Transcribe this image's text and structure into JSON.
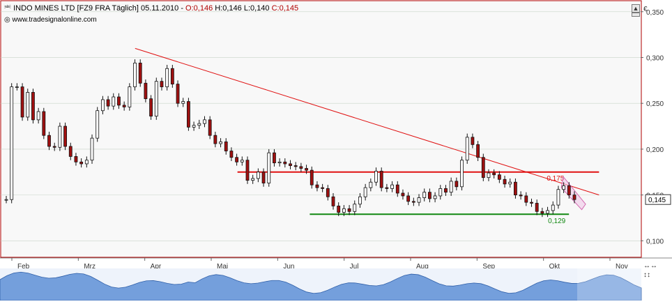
{
  "header": {
    "symbol_icon": "candlestick-icon",
    "title": "INDO MINES LTD [FZ9 FRA  Täglich] 05.11.2010 - ",
    "open": "O:0,146",
    "high": "H:0,146",
    "low": "L:0,140",
    "close": "C:0,145",
    "source": "www.tradesignalonline.com",
    "source_icon": "globe-icon"
  },
  "currency_label": "€",
  "last_price_label": "0,145",
  "annotations": {
    "resistance": "0,175",
    "support": "0,129"
  },
  "colors": {
    "background": "#f8f8f8",
    "up_candle": "#ffffff",
    "down_candle": "#a01010",
    "trendline": "#e01010",
    "support_line": "#118811",
    "volume_fill": "#5e8fd6"
  },
  "chart_data": {
    "type": "candlestick",
    "title": "INDO MINES LTD [FZ9 FRA  Täglich] 05.11.2010",
    "ylabel": "€",
    "ylim": [
      0.082,
      0.362
    ],
    "y_ticks": [
      "0,100",
      "0,150",
      "0,200",
      "0,250",
      "0,300",
      "0,350"
    ],
    "x_ticks": [
      "Feb",
      "Mrz",
      "Apr",
      "Mai",
      "Jun",
      "Jul",
      "Aug",
      "Sep",
      "Okt",
      "Nov"
    ],
    "grid": true,
    "series": [
      {
        "name": "close",
        "points": [
          [
            0,
            0.145
          ],
          [
            2,
            0.268
          ],
          [
            4,
            0.268
          ],
          [
            6,
            0.235
          ],
          [
            8,
            0.262
          ],
          [
            10,
            0.232
          ],
          [
            12,
            0.241
          ],
          [
            14,
            0.215
          ],
          [
            16,
            0.203
          ],
          [
            18,
            0.202
          ],
          [
            20,
            0.225
          ],
          [
            22,
            0.203
          ],
          [
            24,
            0.192
          ],
          [
            26,
            0.186
          ],
          [
            28,
            0.184
          ],
          [
            30,
            0.188
          ],
          [
            32,
            0.212
          ],
          [
            34,
            0.242
          ],
          [
            36,
            0.254
          ],
          [
            38,
            0.247
          ],
          [
            40,
            0.257
          ],
          [
            42,
            0.248
          ],
          [
            44,
            0.246
          ],
          [
            46,
            0.268
          ],
          [
            48,
            0.294
          ],
          [
            50,
            0.272
          ],
          [
            52,
            0.255
          ],
          [
            54,
            0.236
          ],
          [
            56,
            0.274
          ],
          [
            58,
            0.268
          ],
          [
            60,
            0.288
          ],
          [
            62,
            0.271
          ],
          [
            64,
            0.25
          ],
          [
            66,
            0.252
          ],
          [
            68,
            0.224
          ],
          [
            70,
            0.226
          ],
          [
            72,
            0.228
          ],
          [
            74,
            0.232
          ],
          [
            76,
            0.215
          ],
          [
            78,
            0.206
          ],
          [
            80,
            0.208
          ],
          [
            82,
            0.198
          ],
          [
            84,
            0.191
          ],
          [
            86,
            0.186
          ],
          [
            88,
            0.188
          ],
          [
            90,
            0.166
          ],
          [
            92,
            0.168
          ],
          [
            94,
            0.175
          ],
          [
            96,
            0.163
          ],
          [
            98,
            0.196
          ],
          [
            100,
            0.185
          ],
          [
            102,
            0.186
          ],
          [
            104,
            0.184
          ],
          [
            106,
            0.182
          ],
          [
            108,
            0.181
          ],
          [
            110,
            0.179
          ],
          [
            112,
            0.177
          ],
          [
            114,
            0.161
          ],
          [
            116,
            0.158
          ],
          [
            118,
            0.157
          ],
          [
            120,
            0.148
          ],
          [
            122,
            0.138
          ],
          [
            124,
            0.131
          ],
          [
            126,
            0.135
          ],
          [
            128,
            0.132
          ],
          [
            130,
            0.14
          ],
          [
            132,
            0.148
          ],
          [
            134,
            0.158
          ],
          [
            136,
            0.164
          ],
          [
            138,
            0.176
          ],
          [
            140,
            0.158
          ],
          [
            142,
            0.157
          ],
          [
            144,
            0.161
          ],
          [
            146,
            0.152
          ],
          [
            148,
            0.149
          ],
          [
            150,
            0.143
          ],
          [
            152,
            0.142
          ],
          [
            154,
            0.147
          ],
          [
            156,
            0.153
          ],
          [
            158,
            0.146
          ],
          [
            160,
            0.149
          ],
          [
            162,
            0.157
          ],
          [
            164,
            0.153
          ],
          [
            166,
            0.165
          ],
          [
            168,
            0.159
          ],
          [
            170,
            0.188
          ],
          [
            172,
            0.213
          ],
          [
            174,
            0.205
          ],
          [
            176,
            0.191
          ],
          [
            178,
            0.169
          ],
          [
            180,
            0.174
          ],
          [
            182,
            0.172
          ],
          [
            184,
            0.167
          ],
          [
            186,
            0.162
          ],
          [
            188,
            0.164
          ],
          [
            190,
            0.15
          ],
          [
            192,
            0.149
          ],
          [
            194,
            0.142
          ],
          [
            196,
            0.141
          ],
          [
            198,
            0.132
          ],
          [
            200,
            0.13
          ],
          [
            202,
            0.133
          ],
          [
            204,
            0.139
          ],
          [
            206,
            0.156
          ],
          [
            208,
            0.16
          ],
          [
            210,
            0.15
          ],
          [
            212,
            0.145
          ]
        ]
      }
    ],
    "lines": [
      {
        "name": "trendline",
        "from": [
          0.21,
          0.31
        ],
        "to": [
          0.935,
          0.15
        ]
      },
      {
        "name": "resistance",
        "value": 0.175,
        "from_x": 0.37,
        "to_x": 0.935
      },
      {
        "name": "support",
        "value": 0.129,
        "from_x": 0.483,
        "to_x": 0.888
      }
    ],
    "volume": {
      "type": "area"
    }
  }
}
